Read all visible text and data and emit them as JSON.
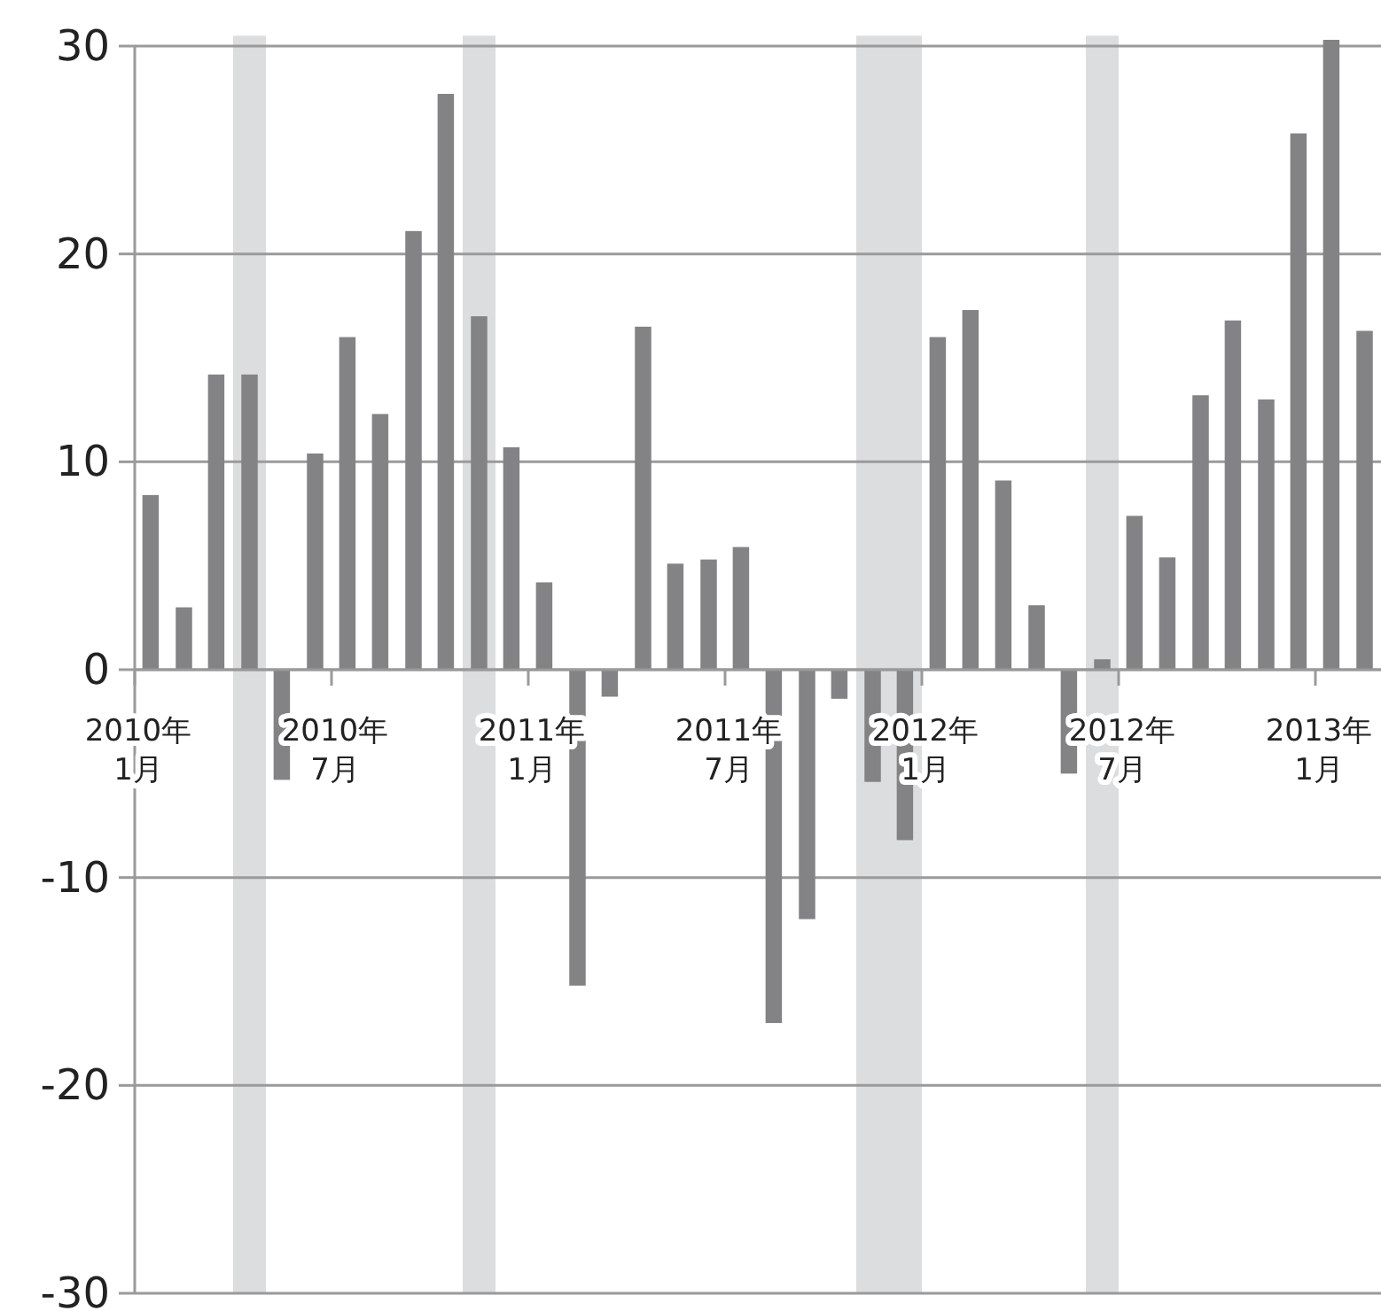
{
  "chart_data": {
    "type": "bar",
    "x": [
      "2010-01-16",
      "2010-02-15",
      "2010-03-16",
      "2010-04-16",
      "2010-05-16",
      "2010-06-16",
      "2010-07-16",
      "2010-08-16",
      "2010-09-16",
      "2010-10-16",
      "2010-11-16",
      "2010-12-16",
      "2011-01-16",
      "2011-02-15",
      "2011-03-16",
      "2011-04-16",
      "2011-05-16",
      "2011-06-16",
      "2011-07-16",
      "2011-08-16",
      "2011-09-16",
      "2011-10-16",
      "2011-11-16",
      "2011-12-16",
      "2012-01-16",
      "2012-02-15",
      "2012-03-16",
      "2012-04-16",
      "2012-05-16",
      "2012-06-16",
      "2012-07-16",
      "2012-08-16",
      "2012-09-16",
      "2012-10-16",
      "2012-11-16",
      "2012-12-16",
      "2013-01-16",
      "2013-02-15"
    ],
    "values": [
      8.4,
      3.0,
      14.2,
      14.2,
      -5.3,
      10.4,
      16.0,
      12.3,
      21.1,
      27.7,
      17.0,
      10.7,
      4.2,
      -15.2,
      -1.3,
      16.5,
      5.1,
      5.3,
      5.9,
      -17.0,
      -12.0,
      -1.4,
      -5.4,
      -8.2,
      16.0,
      17.3,
      9.1,
      3.1,
      -5.0,
      0.5,
      7.4,
      5.4,
      13.2,
      16.8,
      13.0,
      25.8,
      30.3,
      16.3
    ],
    "color": "#838385",
    "xlim": [
      "2010-01",
      "2013-03"
    ],
    "xticks": [
      {
        "value": "2010-01",
        "label": "2010年\n1月"
      },
      {
        "value": "2010-07",
        "label": "2010年\n7月"
      },
      {
        "value": "2011-01",
        "label": "2011年\n1月"
      },
      {
        "value": "2011-07",
        "label": "2011年\n7月"
      },
      {
        "value": "2012-01",
        "label": "2012年\n1月"
      },
      {
        "value": "2012-07",
        "label": "2012年\n7月"
      },
      {
        "value": "2013-01",
        "label": "2013年\n1月"
      }
    ],
    "ylim": [
      -30,
      30.5
    ],
    "yticks": [
      -30,
      -20,
      -10,
      0,
      10,
      20,
      30
    ],
    "grid": "y",
    "bands": [
      {
        "axis": "x",
        "from": "2010-04",
        "to": "2010-05",
        "color": "#dcdddf"
      },
      {
        "axis": "x",
        "from": "2010-11",
        "to": "2010-12",
        "color": "#dcdddf"
      },
      {
        "axis": "x",
        "from": "2011-11",
        "to": "2012-01",
        "color": "#dcdddf"
      },
      {
        "axis": "x",
        "from": "2012-06",
        "to": "2012-07",
        "color": "#dcdddf"
      }
    ]
  }
}
